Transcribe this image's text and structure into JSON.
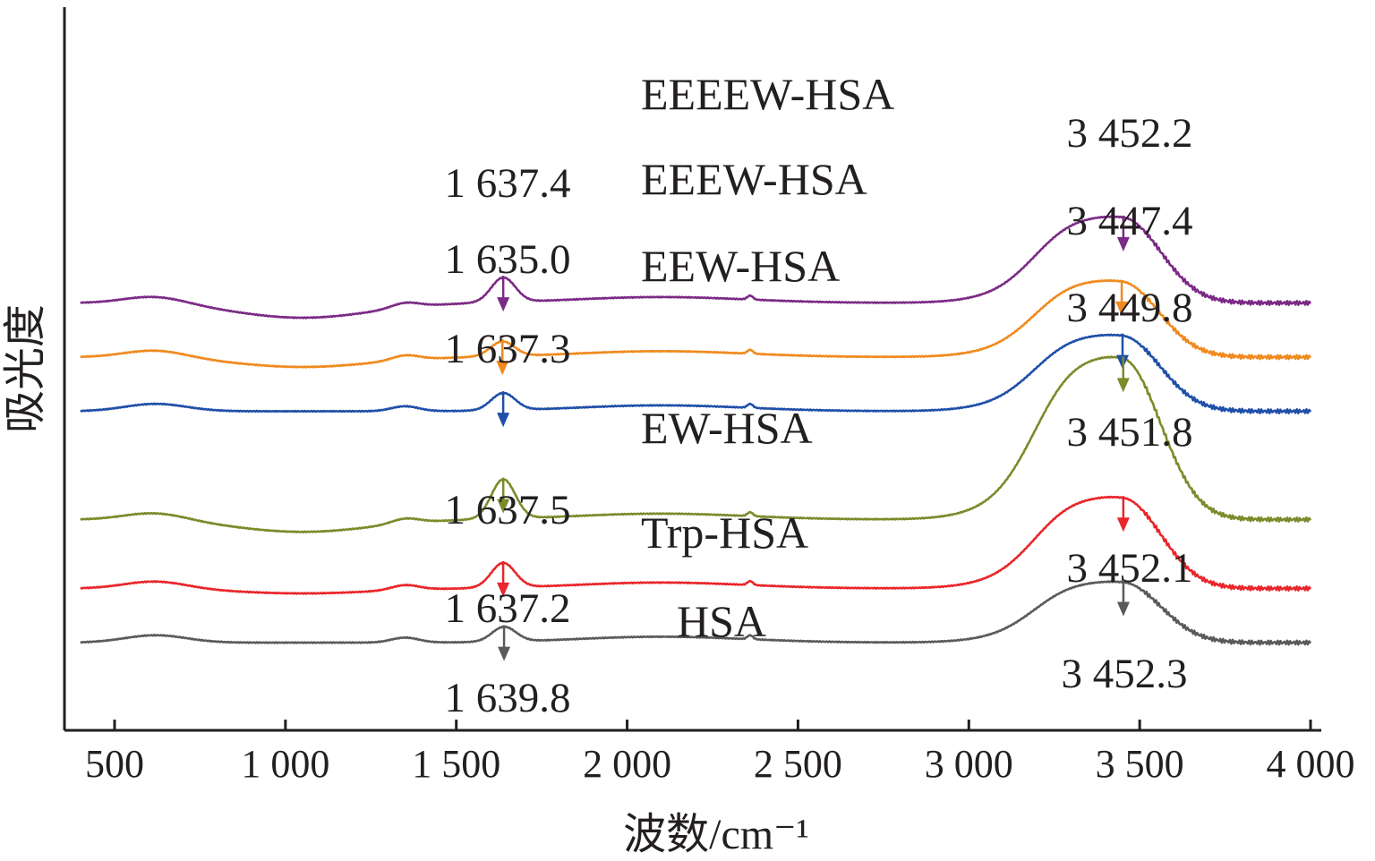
{
  "chart_data": {
    "type": "line",
    "title": "",
    "xlabel": "波数/cm⁻¹",
    "ylabel": "吸光度",
    "xlim": [
      350,
      4000
    ],
    "xticks": [
      500,
      1000,
      1500,
      2000,
      2500,
      3000,
      3500,
      4000
    ],
    "xtick_labels": [
      "500",
      "1 000",
      "1 500",
      "2 000",
      "2 500",
      "3 000",
      "3 500",
      "4 000"
    ],
    "grid": false,
    "y_units": "arbitrary absorbance, series vertically offset",
    "series": [
      {
        "name": "EEEEW-HSA",
        "color": "#7b2a85",
        "baseline": 6.9,
        "features": {
          "amide_peak": 0.5,
          "oh_peak": 1.7,
          "low_dip": -0.3
        },
        "peaks": [
          {
            "x": 1637.4,
            "label": "1 637.4"
          },
          {
            "x": 3452.2,
            "label": "3 452.2"
          }
        ]
      },
      {
        "name": "EEEW-HSA",
        "color": "#f08a1e",
        "baseline": 5.8,
        "features": {
          "amide_peak": 0.3,
          "oh_peak": 1.5,
          "low_dip": -0.2
        },
        "peaks": [
          {
            "x": 1635.0,
            "label": "1 635.0"
          },
          {
            "x": 3447.4,
            "label": "3 447.4"
          }
        ]
      },
      {
        "name": "EEW-HSA",
        "color": "#1f4fa8",
        "baseline": 4.7,
        "features": {
          "amide_peak": 0.35,
          "oh_peak": 1.5,
          "low_dip": 0
        },
        "peaks": [
          {
            "x": 1637.3,
            "label": "1 637.3"
          },
          {
            "x": 3449.8,
            "label": "3 449.8"
          }
        ]
      },
      {
        "name": "EW-HSA",
        "color": "#7d8a2a",
        "baseline": 2.5,
        "features": {
          "amide_peak": 0.8,
          "oh_peak": 3.2,
          "low_dip": -0.25
        },
        "peaks": [
          {
            "x": 1637.5,
            "label": "1 637.5"
          },
          {
            "x": 3451.8,
            "label": "3 451.8"
          }
        ]
      },
      {
        "name": "Trp-HSA",
        "color": "#e8262b",
        "baseline": 1.1,
        "features": {
          "amide_peak": 0.5,
          "oh_peak": 1.8,
          "low_dip": -0.1
        },
        "peaks": [
          {
            "x": 1637.2,
            "label": "1 637.2"
          },
          {
            "x": 3452.1,
            "label": "3 452.1"
          }
        ]
      },
      {
        "name": "HSA",
        "color": "#5a5a5a",
        "baseline": 0.0,
        "features": {
          "amide_peak": 0.3,
          "oh_peak": 1.2,
          "low_dip": 0
        },
        "peaks": [
          {
            "x": 1639.8,
            "label": "1 639.8"
          },
          {
            "x": 3452.3,
            "label": "3 452.3"
          }
        ]
      }
    ],
    "legend": "inline labels next to each spectrum"
  }
}
